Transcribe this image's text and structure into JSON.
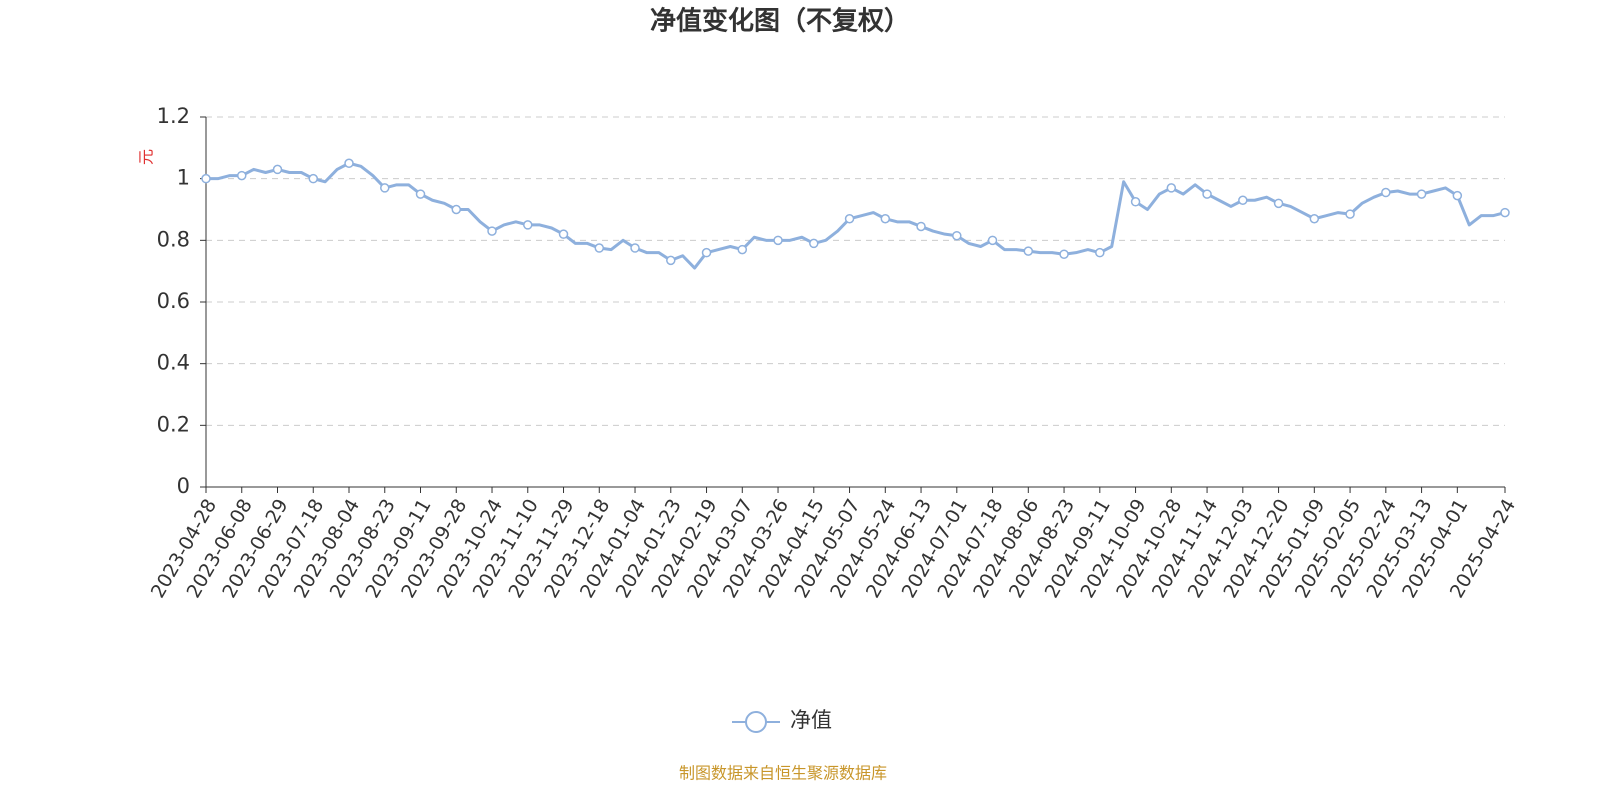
{
  "chart_data": {
    "type": "line",
    "title": "净值变化图（不复权）",
    "y_label": "元",
    "source": "制图数据来自恒生聚源数据库",
    "categories": [
      "2023-04-28",
      null,
      null,
      "2023-06-08",
      null,
      null,
      "2023-06-29",
      null,
      null,
      "2023-07-18",
      null,
      null,
      "2023-08-04",
      null,
      null,
      "2023-08-23",
      null,
      null,
      "2023-09-11",
      null,
      null,
      "2023-09-28",
      null,
      null,
      "2023-10-24",
      null,
      null,
      "2023-11-10",
      null,
      null,
      "2023-11-29",
      null,
      null,
      "2023-12-18",
      null,
      null,
      "2024-01-04",
      null,
      null,
      "2024-01-23",
      null,
      null,
      "2024-02-19",
      null,
      null,
      "2024-03-07",
      null,
      null,
      "2024-03-26",
      null,
      null,
      "2024-04-15",
      null,
      null,
      "2024-05-07",
      null,
      null,
      "2024-05-24",
      null,
      null,
      "2024-06-13",
      null,
      null,
      "2024-07-01",
      null,
      null,
      "2024-07-18",
      null,
      null,
      "2024-08-06",
      null,
      null,
      "2024-08-23",
      null,
      null,
      "2024-09-11",
      null,
      null,
      "2024-10-09",
      null,
      null,
      "2024-10-28",
      null,
      null,
      "2024-11-14",
      null,
      null,
      "2024-12-03",
      null,
      null,
      "2024-12-20",
      null,
      null,
      "2025-01-09",
      null,
      null,
      "2025-02-05",
      null,
      null,
      "2025-02-24",
      null,
      null,
      "2025-03-13",
      null,
      null,
      "2025-04-01",
      null,
      null,
      null,
      "2025-04-24"
    ],
    "series": [
      {
        "name": "净值",
        "color": "#8eb0dd",
        "values": [
          1.0,
          1.0,
          1.01,
          1.01,
          1.03,
          1.02,
          1.03,
          1.02,
          1.02,
          1.0,
          0.99,
          1.03,
          1.05,
          1.04,
          1.01,
          0.97,
          0.98,
          0.98,
          0.95,
          0.93,
          0.92,
          0.9,
          0.9,
          0.86,
          0.83,
          0.85,
          0.86,
          0.85,
          0.85,
          0.84,
          0.82,
          0.79,
          0.79,
          0.775,
          0.77,
          0.8,
          0.775,
          0.76,
          0.76,
          0.735,
          0.75,
          0.71,
          0.76,
          0.77,
          0.78,
          0.77,
          0.81,
          0.8,
          0.8,
          0.8,
          0.81,
          0.79,
          0.8,
          0.83,
          0.87,
          0.88,
          0.89,
          0.87,
          0.86,
          0.86,
          0.845,
          0.83,
          0.82,
          0.815,
          0.79,
          0.78,
          0.8,
          0.77,
          0.77,
          0.765,
          0.76,
          0.76,
          0.755,
          0.76,
          0.77,
          0.76,
          0.78,
          0.99,
          0.925,
          0.9,
          0.95,
          0.97,
          0.95,
          0.98,
          0.95,
          0.93,
          0.91,
          0.93,
          0.93,
          0.94,
          0.92,
          0.91,
          0.89,
          0.87,
          0.88,
          0.89,
          0.885,
          0.92,
          0.94,
          0.955,
          0.96,
          0.95,
          0.95,
          0.96,
          0.97,
          0.945,
          0.85,
          0.88,
          0.88,
          0.89
        ]
      }
    ],
    "ylim": [
      0,
      1.2
    ],
    "yticks": [
      0,
      0.2,
      0.4,
      0.6,
      0.8,
      1,
      1.2
    ],
    "grid": true
  }
}
